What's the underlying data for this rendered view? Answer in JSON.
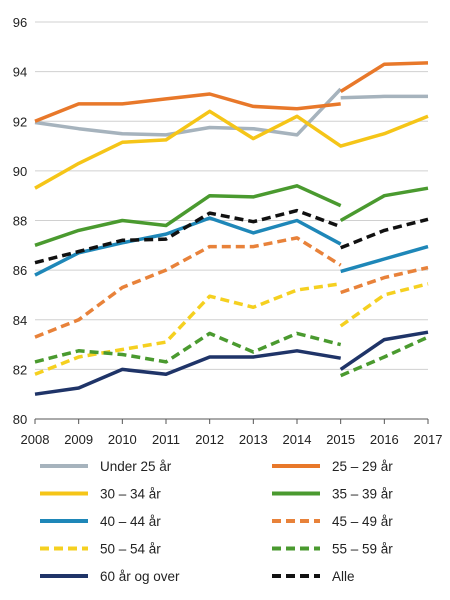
{
  "chart_data": {
    "type": "line",
    "title": "",
    "xlabel": "",
    "ylabel": "",
    "x": [
      "2008",
      "2009",
      "2010",
      "2011",
      "2012",
      "2013",
      "2014",
      "2015",
      "2016",
      "2017"
    ],
    "ylim": [
      80,
      96
    ],
    "yticks": [
      "80",
      "82",
      "84",
      "86",
      "88",
      "90",
      "92",
      "94",
      "96"
    ],
    "grid": "horizontal",
    "legend_position": "bottom",
    "series": [
      {
        "name": "Under 25 år",
        "color": "#a6b3bd",
        "dashed": false,
        "segments": [
          {
            "x": [
              "2008",
              "2009",
              "2010",
              "2011",
              "2012",
              "2013",
              "2014",
              "2015"
            ],
            "values": [
              91.95,
              91.7,
              91.5,
              91.45,
              91.75,
              91.7,
              91.45,
              93.3
            ]
          },
          {
            "x": [
              "2015",
              "2016",
              "2017"
            ],
            "values": [
              92.95,
              93.0,
              93.0
            ]
          }
        ]
      },
      {
        "name": "25 – 29 år",
        "color": "#e8782a",
        "dashed": false,
        "segments": [
          {
            "x": [
              "2008",
              "2009",
              "2010",
              "2011",
              "2012",
              "2013",
              "2014",
              "2015"
            ],
            "values": [
              92.0,
              92.7,
              92.7,
              92.9,
              93.1,
              92.6,
              92.5,
              92.7
            ]
          },
          {
            "x": [
              "2015",
              "2016",
              "2017"
            ],
            "values": [
              93.2,
              94.3,
              94.35
            ]
          }
        ]
      },
      {
        "name": "30 – 34 år",
        "color": "#f5c518",
        "dashed": false,
        "segments": [
          {
            "x": [
              "2008",
              "2009",
              "2010",
              "2011",
              "2012",
              "2013",
              "2014",
              "2015",
              "2016",
              "2017"
            ],
            "values": [
              89.3,
              90.3,
              91.15,
              91.25,
              92.4,
              91.3,
              92.2,
              91.0,
              91.5,
              92.2
            ]
          }
        ]
      },
      {
        "name": "35 – 39 år",
        "color": "#4a9a2f",
        "dashed": false,
        "segments": [
          {
            "x": [
              "2008",
              "2009",
              "2010",
              "2011",
              "2012",
              "2013",
              "2014",
              "2015"
            ],
            "values": [
              87.0,
              87.6,
              88.0,
              87.8,
              89.0,
              88.95,
              89.4,
              88.6
            ]
          },
          {
            "x": [
              "2015",
              "2016",
              "2017"
            ],
            "values": [
              88.0,
              89.0,
              89.3
            ]
          }
        ]
      },
      {
        "name": "40 – 44 år",
        "color": "#1e87b8",
        "dashed": false,
        "segments": [
          {
            "x": [
              "2008",
              "2009",
              "2010",
              "2011",
              "2012",
              "2013",
              "2014",
              "2015"
            ],
            "values": [
              85.8,
              86.7,
              87.1,
              87.45,
              88.1,
              87.5,
              88.0,
              87.05
            ]
          },
          {
            "x": [
              "2015",
              "2016",
              "2017"
            ],
            "values": [
              85.95,
              86.45,
              86.95
            ]
          }
        ]
      },
      {
        "name": "45 – 49 år",
        "color": "#e8823a",
        "dashed": true,
        "segments": [
          {
            "x": [
              "2008",
              "2009",
              "2010",
              "2011",
              "2012",
              "2013",
              "2014",
              "2015"
            ],
            "values": [
              83.3,
              84.0,
              85.3,
              86.0,
              86.95,
              86.95,
              87.3,
              86.2
            ]
          },
          {
            "x": [
              "2015",
              "2016",
              "2017"
            ],
            "values": [
              85.1,
              85.7,
              86.1
            ]
          }
        ]
      },
      {
        "name": "50 – 54 år",
        "color": "#f5d020",
        "dashed": true,
        "segments": [
          {
            "x": [
              "2008",
              "2009",
              "2010",
              "2011",
              "2012",
              "2013",
              "2014",
              "2015"
            ],
            "values": [
              81.8,
              82.5,
              82.8,
              83.1,
              84.95,
              84.5,
              85.2,
              85.45
            ]
          },
          {
            "x": [
              "2015",
              "2016",
              "2017"
            ],
            "values": [
              83.75,
              85.0,
              85.45
            ]
          }
        ]
      },
      {
        "name": "55 – 59 år",
        "color": "#4a9a2f",
        "dashed": true,
        "segments": [
          {
            "x": [
              "2008",
              "2009",
              "2010",
              "2011",
              "2012",
              "2013",
              "2014",
              "2015"
            ],
            "values": [
              82.3,
              82.75,
              82.6,
              82.3,
              83.45,
              82.7,
              83.45,
              83.0
            ]
          },
          {
            "x": [
              "2015",
              "2016",
              "2017"
            ],
            "values": [
              81.75,
              82.5,
              83.3
            ]
          }
        ]
      },
      {
        "name": "60 år og over",
        "color": "#1f3468",
        "dashed": false,
        "segments": [
          {
            "x": [
              "2008",
              "2009",
              "2010",
              "2011",
              "2012",
              "2013",
              "2014",
              "2015"
            ],
            "values": [
              81.0,
              81.25,
              82.0,
              81.8,
              82.5,
              82.5,
              82.75,
              82.45
            ]
          },
          {
            "x": [
              "2015",
              "2016",
              "2017"
            ],
            "values": [
              82.0,
              83.2,
              83.5
            ]
          }
        ]
      },
      {
        "name": "Alle",
        "color": "#111111",
        "dashed": true,
        "segments": [
          {
            "x": [
              "2008",
              "2009",
              "2010",
              "2011",
              "2012",
              "2013",
              "2014",
              "2015"
            ],
            "values": [
              86.3,
              86.75,
              87.2,
              87.25,
              88.3,
              87.95,
              88.4,
              87.75
            ]
          },
          {
            "x": [
              "2015",
              "2016",
              "2017"
            ],
            "values": [
              86.9,
              87.6,
              88.05
            ]
          }
        ]
      }
    ]
  }
}
